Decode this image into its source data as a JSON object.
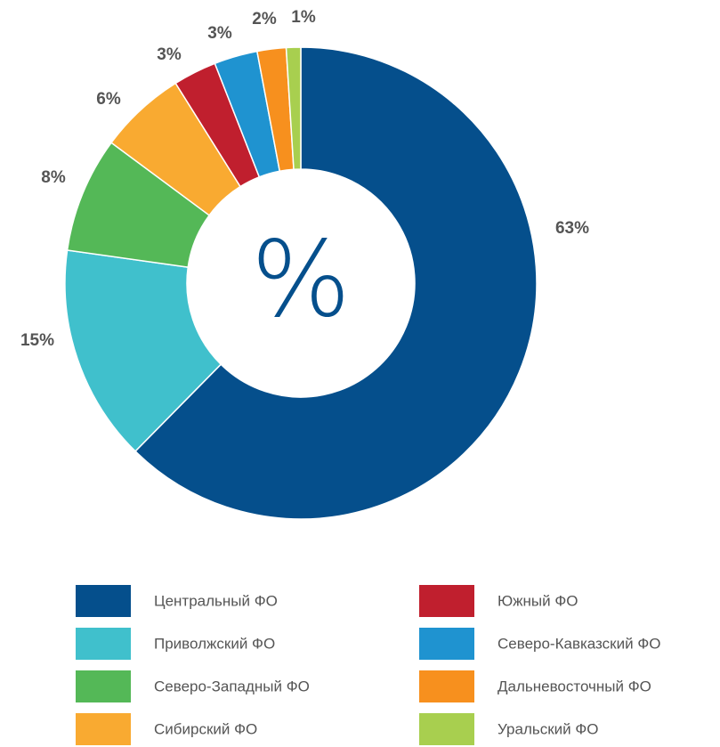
{
  "chart_data": {
    "type": "donut",
    "center_label": "%",
    "categories": [
      "Центральный ФО",
      "Приволжский ФО",
      "Северо-Западный ФО",
      "Сибирский ФО",
      "Южный ФО",
      "Северо-Кавказский ФО",
      "Дальневосточный ФО",
      "Уральский ФО"
    ],
    "values": [
      63,
      15,
      8,
      6,
      3,
      3,
      2,
      1
    ],
    "value_labels": [
      "63%",
      "15%",
      "8%",
      "6%",
      "3%",
      "3%",
      "2%",
      "1%"
    ],
    "colors": [
      "#054f8c",
      "#40c0cc",
      "#54b857",
      "#f9aa31",
      "#c01f2e",
      "#1f93d0",
      "#f7901e",
      "#a8cf4f"
    ],
    "legend": true
  }
}
